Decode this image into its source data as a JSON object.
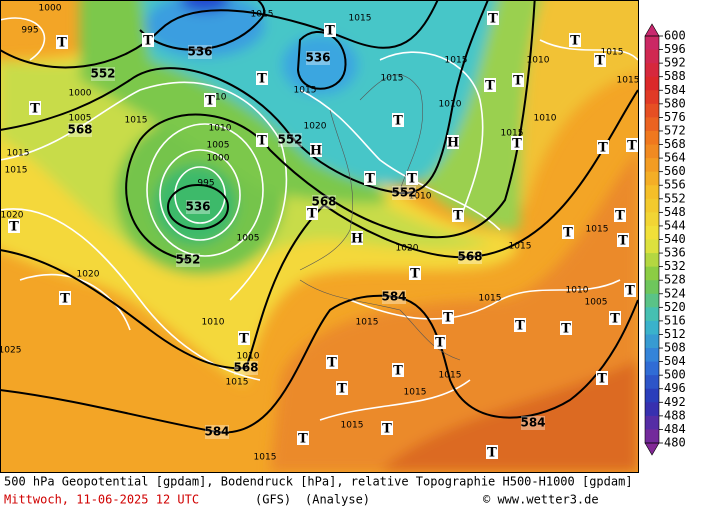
{
  "map": {
    "geopotential_labels": [
      "536",
      "536",
      "552",
      "568",
      "552",
      "536",
      "552",
      "568",
      "552",
      "568",
      "584",
      "568",
      "584",
      "584"
    ],
    "pressure_labels": [
      "1000",
      "995",
      "1015",
      "1015",
      "1010",
      "1010",
      "1005",
      "1000",
      "995",
      "1005",
      "1015",
      "1005",
      "1000",
      "1020",
      "1015",
      "1015",
      "1015",
      "1010",
      "1015",
      "1015",
      "1010",
      "1015",
      "1020",
      "1010",
      "1010",
      "1015",
      "1015",
      "1020",
      "1015",
      "1010",
      "1015",
      "1015",
      "1005",
      "1015",
      "1015",
      "1015",
      "1015",
      "1010",
      "1010",
      "1015",
      "1015",
      "1020",
      "1025"
    ],
    "markers": [
      "T",
      "T",
      "T",
      "T",
      "T",
      "T",
      "T",
      "H",
      "T",
      "T",
      "H",
      "T",
      "T",
      "T",
      "H",
      "T",
      "T",
      "T",
      "T",
      "T",
      "T",
      "T",
      "T",
      "T",
      "T",
      "T",
      "T",
      "T",
      "T",
      "T",
      "T",
      "T",
      "T",
      "T",
      "T",
      "T",
      "T",
      "T",
      "T",
      "T",
      "T",
      "T",
      "T"
    ]
  },
  "colorbar": {
    "ticks": [
      600,
      596,
      592,
      588,
      584,
      580,
      576,
      572,
      568,
      564,
      560,
      556,
      552,
      548,
      544,
      540,
      536,
      532,
      528,
      524,
      520,
      516,
      512,
      508,
      504,
      500,
      496,
      492,
      488,
      484,
      480
    ]
  },
  "footer": {
    "line1": "500 hPa Geopotential [gpdam], Bodendruck [hPa], relative Topographie H500-H1000 [gpdam]",
    "date": "Mittwoch, 11-06-2025  12 UTC",
    "model": "(GFS)",
    "run": "(Analyse)",
    "credit": "© www.wetter3.de"
  }
}
